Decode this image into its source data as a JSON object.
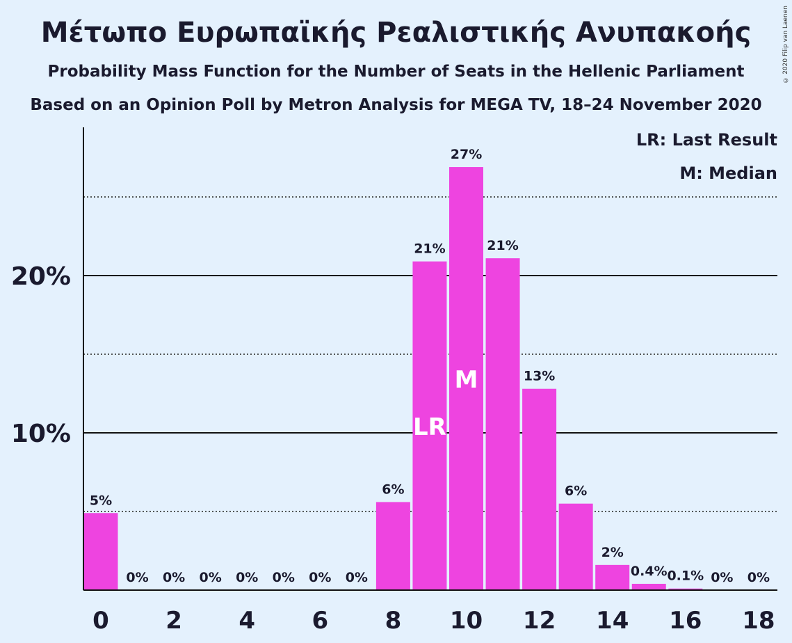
{
  "title": "Μέτωπο Ευρωπαϊκής Ρεαλιστικής Ανυπακοής",
  "subtitle": "Probability Mass Function for the Number of Seats in the Hellenic Parliament",
  "subtitle2": "Based on an Opinion Poll by Metron Analysis for MEGA TV, 18–24 November 2020",
  "copyright": "© 2020 Filip van Laenen",
  "legend": {
    "lr": "LR: Last Result",
    "m": "M: Median"
  },
  "colors": {
    "bar": "#ee44e0",
    "background": "#e4f1fd",
    "text": "#1a1a2e"
  },
  "chart_data": {
    "type": "bar",
    "categories": [
      0,
      1,
      2,
      3,
      4,
      5,
      6,
      7,
      8,
      9,
      10,
      11,
      12,
      13,
      14,
      15,
      16,
      17,
      18
    ],
    "values": [
      4.9,
      0,
      0,
      0,
      0,
      0,
      0,
      0,
      5.6,
      20.9,
      26.9,
      21.1,
      12.8,
      5.5,
      1.6,
      0.4,
      0.1,
      0,
      0
    ],
    "labels": [
      "5%",
      "0%",
      "0%",
      "0%",
      "0%",
      "0%",
      "0%",
      "0%",
      "6%",
      "21%",
      "27%",
      "21%",
      "13%",
      "6%",
      "2%",
      "0.4%",
      "0.1%",
      "0%",
      "0%"
    ],
    "x_tick_labels": [
      "0",
      "2",
      "4",
      "6",
      "8",
      "10",
      "12",
      "14",
      "16",
      "18"
    ],
    "y_tick_labels": [
      "10%",
      "20%"
    ],
    "ylim": [
      0,
      29.5
    ],
    "grid": "solid at 10% and 20%, dotted at 5%, 15%, 25%",
    "markers": [
      {
        "seats": 9,
        "text": "LR"
      },
      {
        "seats": 10,
        "text": "M"
      }
    ],
    "legend_position": "top-right"
  }
}
